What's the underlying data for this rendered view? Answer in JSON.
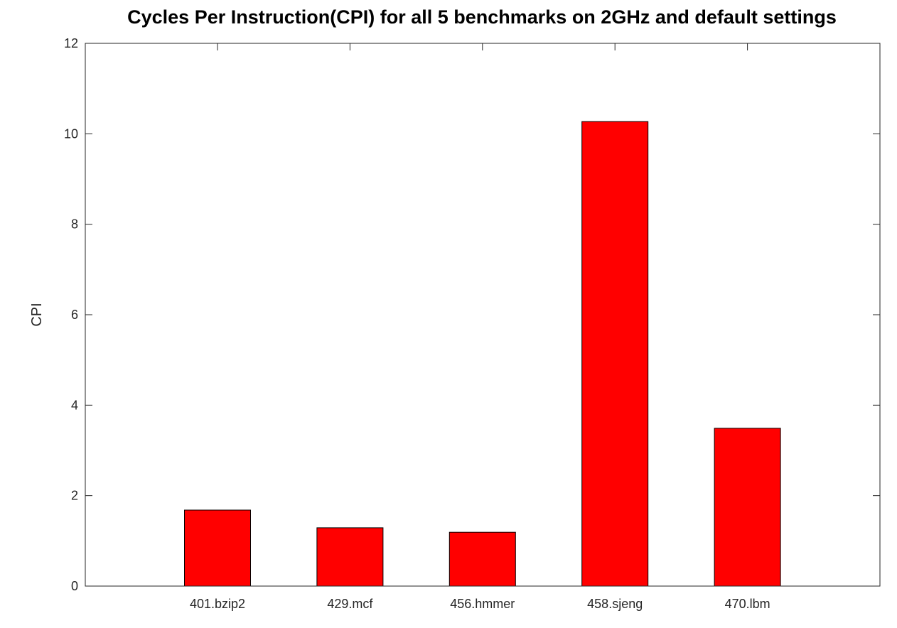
{
  "chart_data": {
    "type": "bar",
    "title": "Cycles Per Instruction(CPI) for all 5 benchmarks on 2GHz and default settings",
    "xlabel": "",
    "ylabel": "CPI",
    "categories": [
      "401.bzip2",
      "429.mcf",
      "456.hmmer",
      "458.sjeng",
      "470.lbm"
    ],
    "values": [
      1.68,
      1.29,
      1.19,
      10.27,
      3.49
    ],
    "ylim": [
      0,
      12
    ],
    "yticks": [
      0,
      2,
      4,
      6,
      8,
      10,
      12
    ],
    "bar_color": "#ff0000",
    "edge_color": "#000000",
    "grid": false
  }
}
